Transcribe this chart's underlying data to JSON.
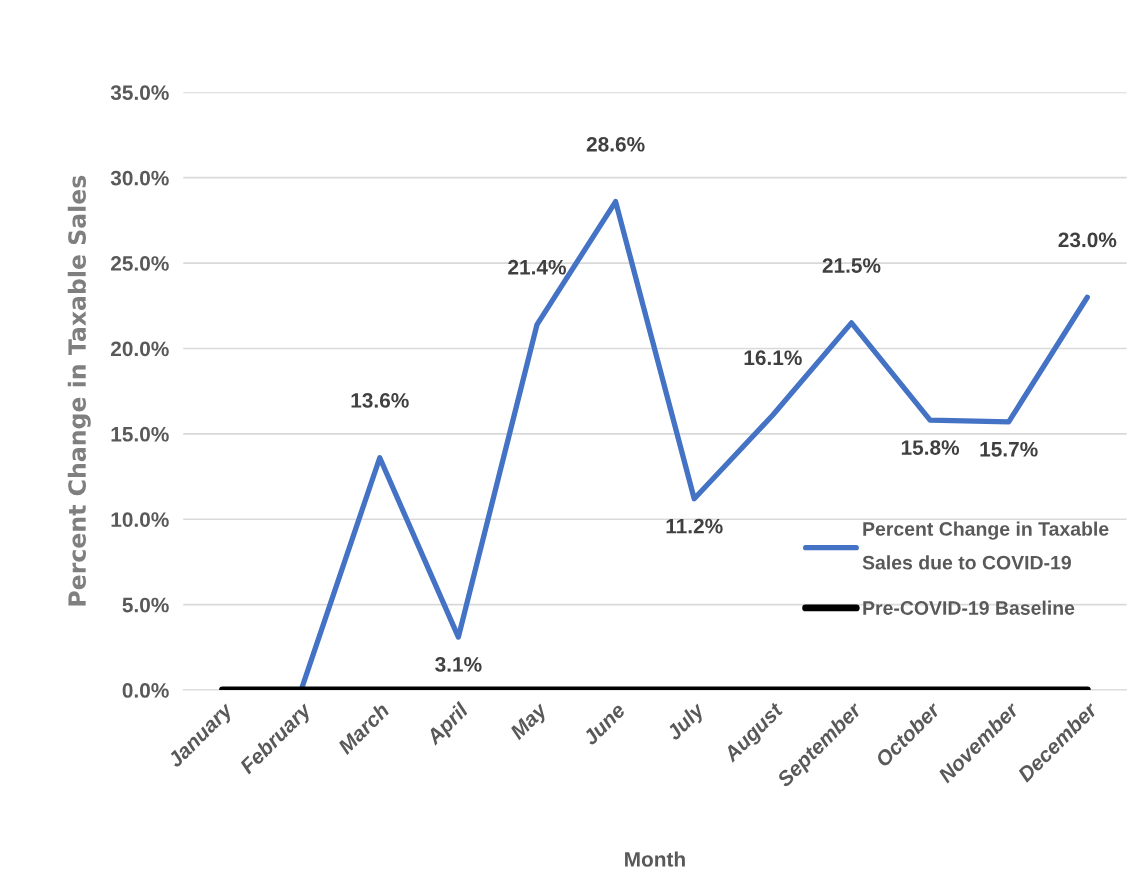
{
  "chart_data": {
    "type": "line",
    "xlabel": "Month",
    "ylabel": "Percent Change in Taxable Sales",
    "categories": [
      "January",
      "February",
      "March",
      "April",
      "May",
      "June",
      "July",
      "August",
      "September",
      "October",
      "November",
      "December"
    ],
    "series": [
      {
        "name": "Percent Change in Taxable\nSales due to COVID-19",
        "color": "#4472c4",
        "values": [
          null,
          0.0,
          13.6,
          3.1,
          21.4,
          28.6,
          11.2,
          16.1,
          21.5,
          15.8,
          15.7,
          23.0
        ],
        "value_labels": [
          null,
          null,
          "13.6%",
          "3.1%",
          "21.4%",
          "28.6%",
          "11.2%",
          "16.1%",
          "21.5%",
          "15.8%",
          "15.7%",
          "23.0%"
        ]
      },
      {
        "name": "Pre-COVID-19 Baseline",
        "color": "#000000",
        "values": [
          0,
          0,
          0,
          0,
          0,
          0,
          0,
          0,
          0,
          0,
          0,
          0
        ]
      }
    ],
    "ylim": [
      0,
      35
    ],
    "yticks": [
      {
        "value": 0,
        "label": "0.0%"
      },
      {
        "value": 5,
        "label": "5.0%"
      },
      {
        "value": 10,
        "label": "10.0%"
      },
      {
        "value": 15,
        "label": "15.0%"
      },
      {
        "value": 20,
        "label": "20.0%"
      },
      {
        "value": 25,
        "label": "25.0%"
      },
      {
        "value": 30,
        "label": "30.0%"
      },
      {
        "value": 35,
        "label": "35.0%"
      }
    ],
    "grid": "y",
    "legend": "bottom right",
    "line_style": "solid"
  }
}
